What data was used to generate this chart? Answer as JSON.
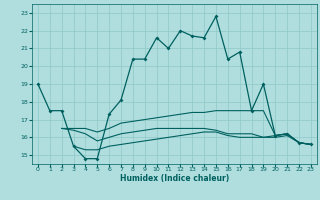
{
  "xlabel": "Humidex (Indice chaleur)",
  "xlim": [
    -0.5,
    23.5
  ],
  "ylim": [
    14.5,
    23.5
  ],
  "yticks": [
    15,
    16,
    17,
    18,
    19,
    20,
    21,
    22,
    23
  ],
  "xticks": [
    0,
    1,
    2,
    3,
    4,
    5,
    6,
    7,
    8,
    9,
    10,
    11,
    12,
    13,
    14,
    15,
    16,
    17,
    18,
    19,
    20,
    21,
    22,
    23
  ],
  "bg_color": "#b0dede",
  "grid_color": "#8ec8c8",
  "line_color": "#006060",
  "line1_x": [
    0,
    1,
    2,
    3,
    4,
    5,
    6,
    7,
    8,
    9,
    10,
    11,
    12,
    13,
    14,
    15,
    16,
    17,
    18,
    19,
    20,
    21,
    22,
    23
  ],
  "line1_y": [
    19,
    17.5,
    17.5,
    15.5,
    14.8,
    14.8,
    17.3,
    18.1,
    20.4,
    20.4,
    21.6,
    21.0,
    22.0,
    21.7,
    21.6,
    22.8,
    20.4,
    20.8,
    17.5,
    19.0,
    16.1,
    16.2,
    15.7,
    15.6
  ],
  "line2_x": [
    2,
    3,
    4,
    5,
    6,
    7,
    8,
    9,
    10,
    11,
    12,
    13,
    14,
    15,
    16,
    17,
    18,
    19,
    20,
    21,
    22,
    23
  ],
  "line2_y": [
    16.5,
    16.5,
    16.5,
    16.3,
    16.5,
    16.8,
    16.9,
    17.0,
    17.1,
    17.2,
    17.3,
    17.4,
    17.4,
    17.5,
    17.5,
    17.5,
    17.5,
    17.5,
    16.1,
    16.2,
    15.7,
    15.6
  ],
  "line3_x": [
    2,
    3,
    4,
    5,
    6,
    7,
    8,
    9,
    10,
    11,
    12,
    13,
    14,
    15,
    16,
    17,
    18,
    19,
    20,
    21,
    22,
    23
  ],
  "line3_y": [
    16.5,
    16.4,
    16.2,
    15.8,
    16.0,
    16.2,
    16.3,
    16.4,
    16.5,
    16.5,
    16.5,
    16.5,
    16.5,
    16.4,
    16.2,
    16.2,
    16.2,
    16.0,
    16.1,
    16.2,
    15.7,
    15.6
  ],
  "line4_x": [
    3,
    4,
    5,
    6,
    7,
    8,
    9,
    10,
    11,
    12,
    13,
    14,
    15,
    16,
    17,
    18,
    19,
    20,
    21,
    22,
    23
  ],
  "line4_y": [
    15.5,
    15.3,
    15.3,
    15.5,
    15.6,
    15.7,
    15.8,
    15.9,
    16.0,
    16.1,
    16.2,
    16.3,
    16.3,
    16.1,
    16.0,
    16.0,
    16.0,
    16.0,
    16.1,
    15.7,
    15.6
  ]
}
